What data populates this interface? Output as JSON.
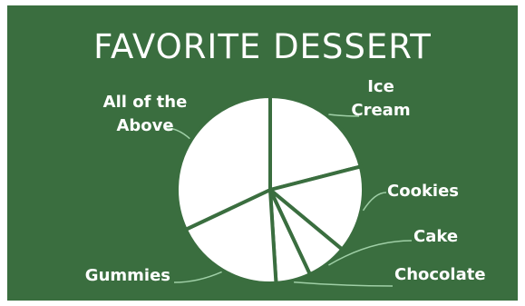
{
  "chart_data": {
    "type": "pie",
    "title": "FAVORITE DESSERT",
    "slices": [
      {
        "label": "Ice Cream",
        "lines": [
          "Ice",
          "Cream"
        ],
        "value": 21
      },
      {
        "label": "Cookies",
        "lines": [
          "Cookies"
        ],
        "value": 15
      },
      {
        "label": "Cake",
        "lines": [
          "Cake"
        ],
        "value": 7
      },
      {
        "label": "Chocolate",
        "lines": [
          "Chocolate"
        ],
        "value": 6
      },
      {
        "label": "Gummies",
        "lines": [
          "Gummies"
        ],
        "value": 19
      },
      {
        "label": "All of the Above",
        "lines": [
          "All of the",
          "Above"
        ],
        "value": 32
      }
    ],
    "colors": {
      "background": "#3a6e3f",
      "slice": "#ffffff",
      "separator": "#3a6e3f",
      "leader": "#9fcfa6"
    }
  }
}
